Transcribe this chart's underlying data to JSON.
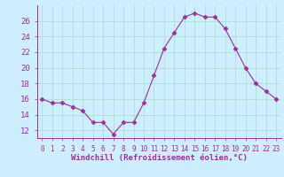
{
  "x": [
    0,
    1,
    2,
    3,
    4,
    5,
    6,
    7,
    8,
    9,
    10,
    11,
    12,
    13,
    14,
    15,
    16,
    17,
    18,
    19,
    20,
    21,
    22,
    23
  ],
  "y": [
    16.0,
    15.5,
    15.5,
    15.0,
    14.5,
    13.0,
    13.0,
    11.5,
    13.0,
    13.0,
    15.5,
    19.0,
    22.5,
    24.5,
    26.5,
    27.0,
    26.5,
    26.5,
    25.0,
    22.5,
    20.0,
    18.0,
    17.0,
    16.0
  ],
  "line_color": "#993399",
  "marker_color": "#993399",
  "bg_color": "#cceeff",
  "grid_color": "#aaddcc",
  "xlabel": "Windchill (Refroidissement éolien,°C)",
  "xlabel_color": "#993399",
  "tick_color": "#993399",
  "ylim": [
    11,
    28
  ],
  "yticks": [
    12,
    14,
    16,
    18,
    20,
    22,
    24,
    26
  ],
  "xlim": [
    -0.5,
    23.5
  ],
  "figsize": [
    3.2,
    2.0
  ],
  "dpi": 100
}
